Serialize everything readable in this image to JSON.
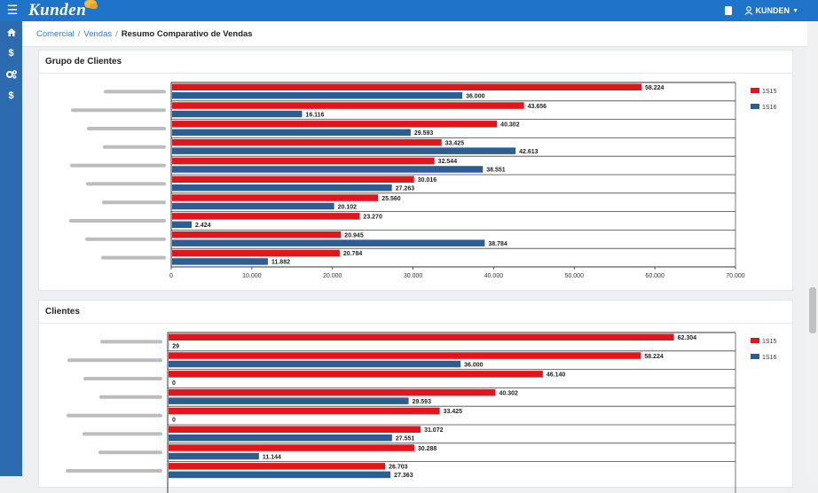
{
  "app": {
    "logo_text": "Kunden"
  },
  "topbar": {
    "user_label": "KUNDEN"
  },
  "breadcrumb": {
    "items": [
      "Comercial",
      "Vendas"
    ],
    "current": "Resumo Comparativo de Vendas"
  },
  "colors": {
    "series_1S15": "#e0161c",
    "series_1S16": "#2d5e93",
    "topbar": "#1f73c9",
    "sidebar": "#2d6bb0"
  },
  "sidebar": {
    "icons": [
      "home-icon",
      "dollar-icon",
      "cogs-icon",
      "dollar-icon"
    ]
  },
  "panels": [
    {
      "title": "Grupo de Clientes"
    },
    {
      "title": "Clientes"
    }
  ],
  "chart_data": [
    {
      "type": "bar",
      "orientation": "horizontal",
      "title": "Grupo de Clientes",
      "categories": [
        "",
        "",
        "",
        "",
        "",
        "",
        "",
        "",
        "",
        ""
      ],
      "series": [
        {
          "name": "1S15",
          "values": [
            58224,
            43656,
            40302,
            33425,
            32544,
            30016,
            25560,
            23270,
            20945,
            20784
          ],
          "labels": [
            "58.224",
            "43.656",
            "40.302",
            "33.425",
            "32.544",
            "30.016",
            "25.560",
            "23.270",
            "20.945",
            "20.784"
          ]
        },
        {
          "name": "1S16",
          "values": [
            36000,
            16116,
            29593,
            42613,
            38551,
            27263,
            20102,
            2424,
            38784,
            11882
          ],
          "labels": [
            "36.000",
            "16.116",
            "29.593",
            "42.613",
            "38.551",
            "27.263",
            "20.102",
            "2.424",
            "38.784",
            "11.882"
          ]
        }
      ],
      "xlim": [
        0,
        70000
      ],
      "xticks": [
        0,
        10000,
        20000,
        30000,
        40000,
        50000,
        60000,
        70000
      ],
      "xtick_labels": [
        "0",
        "10.000",
        "20.000",
        "30.000",
        "40.000",
        "50.000",
        "60.000",
        "70.000"
      ],
      "legend": "top-right",
      "grid": false
    },
    {
      "type": "bar",
      "orientation": "horizontal",
      "title": "Clientes",
      "categories": [
        "",
        "",
        "",
        "",
        "",
        "",
        "",
        ""
      ],
      "series": [
        {
          "name": "1S15",
          "values": [
            62304,
            58224,
            46140,
            40302,
            33425,
            31072,
            30288,
            26703
          ],
          "labels": [
            "62.304",
            "58.224",
            "46.140",
            "40.302",
            "33.425",
            "31.072",
            "30.288",
            "26.703"
          ]
        },
        {
          "name": "1S16",
          "values": [
            29,
            36000,
            0,
            29593,
            0,
            27551,
            11144,
            27363
          ],
          "labels": [
            "29",
            "36.000",
            "0",
            "29.593",
            "0",
            "27.551",
            "11.144",
            "27.363"
          ]
        }
      ],
      "xlim": [
        0,
        70000
      ],
      "legend": "top-right",
      "grid": false
    }
  ]
}
